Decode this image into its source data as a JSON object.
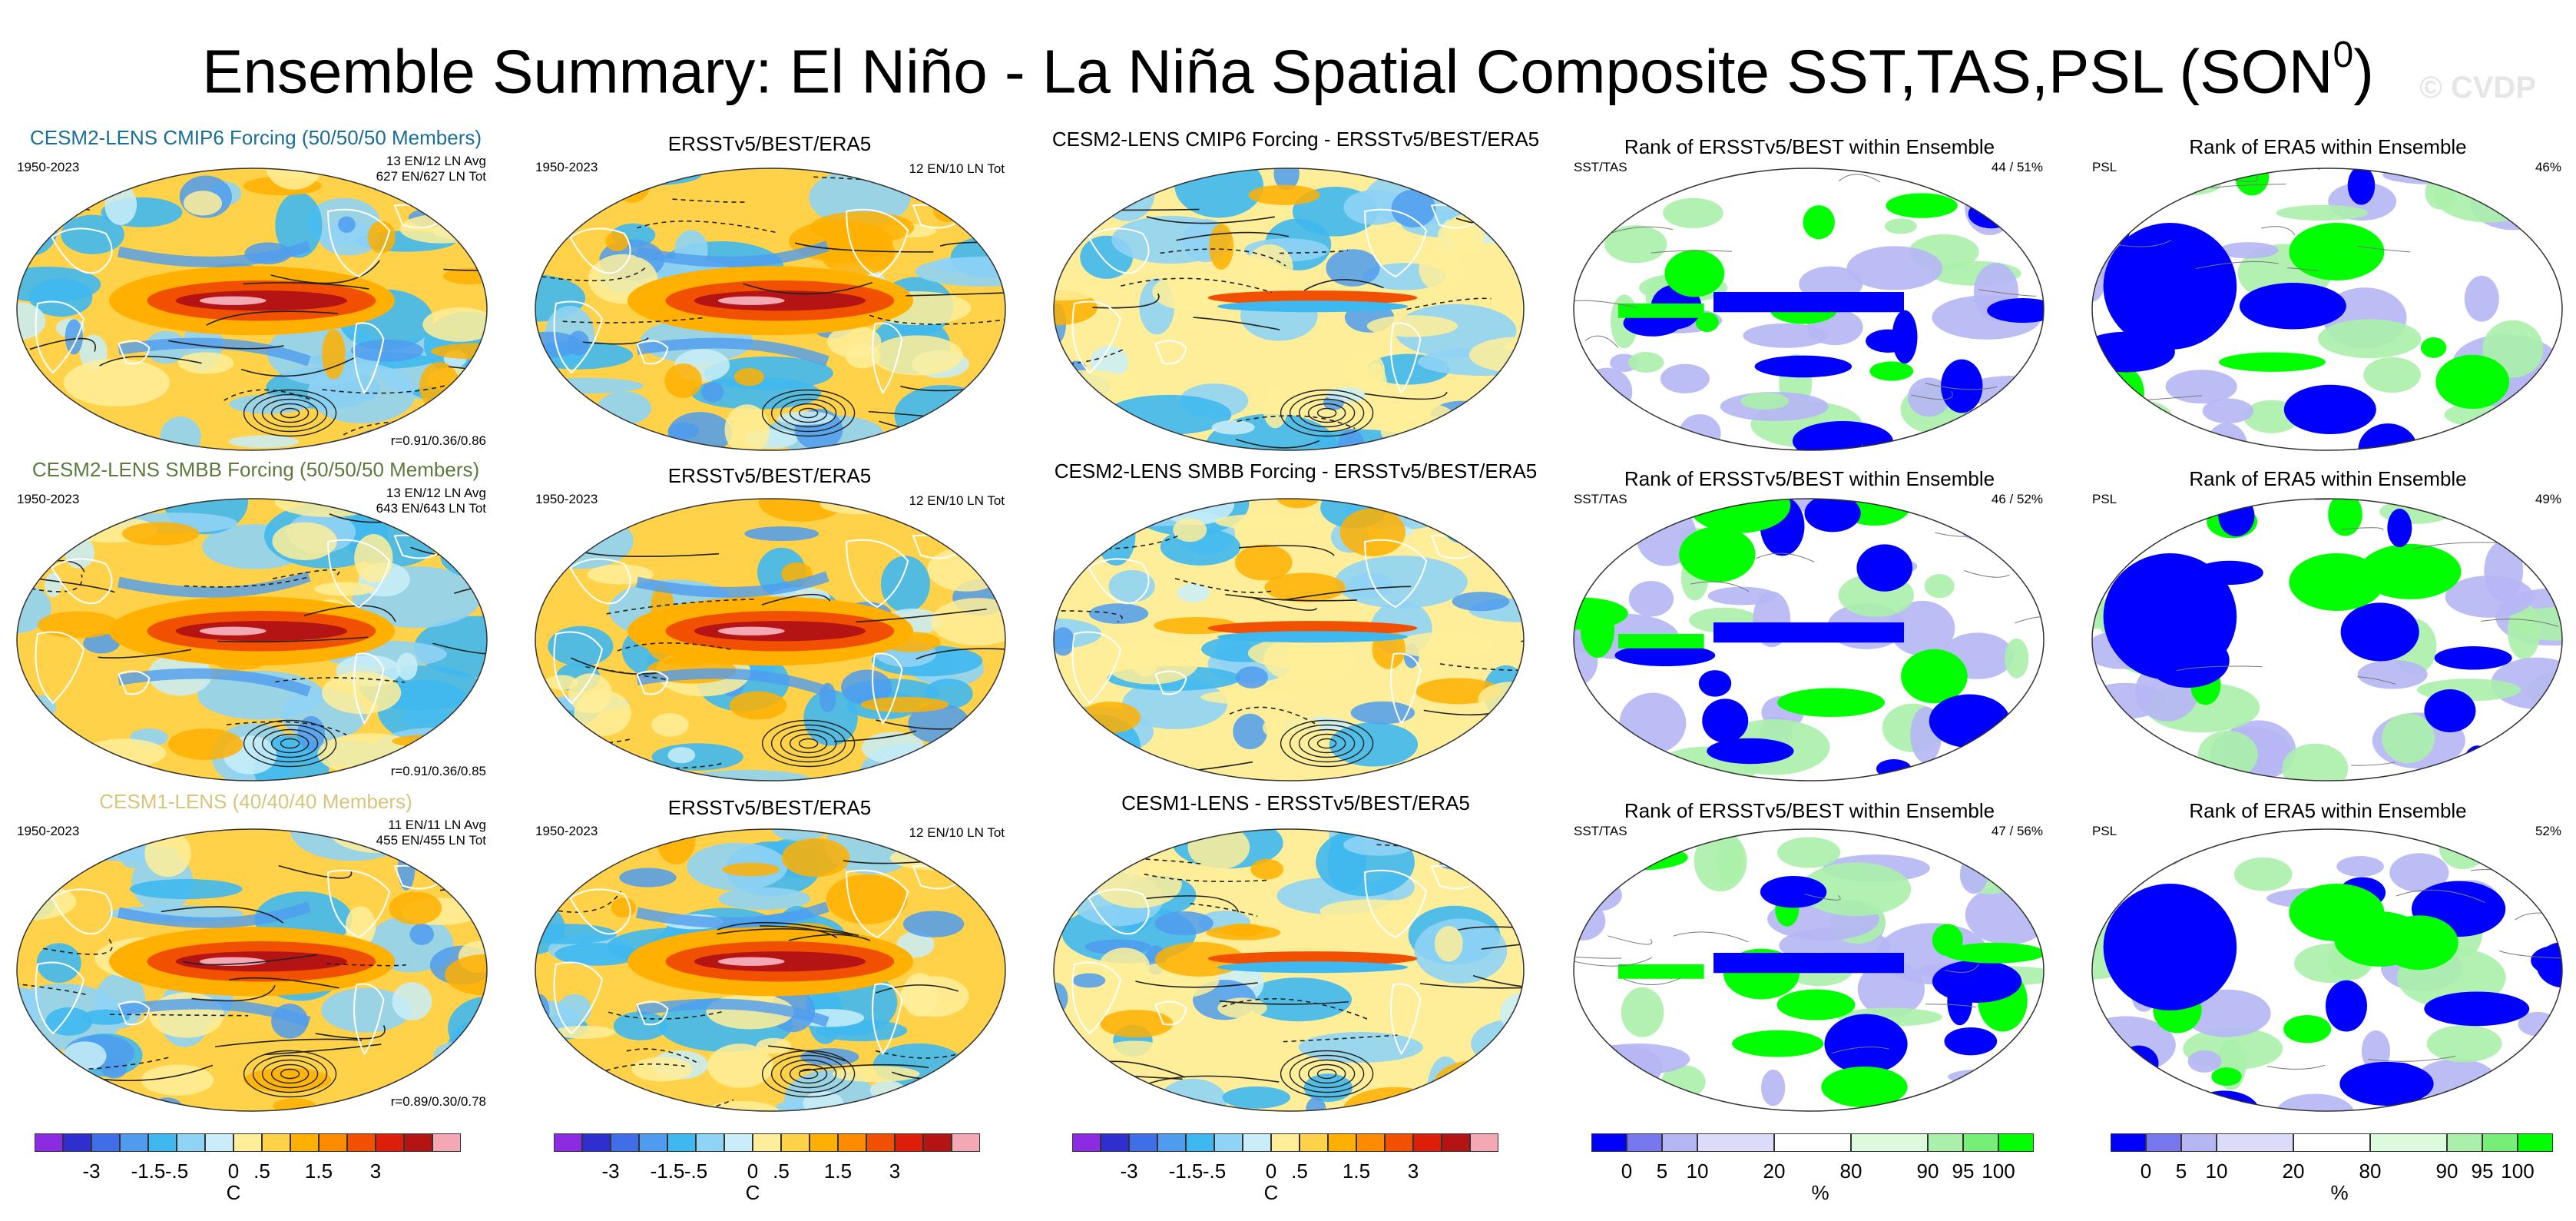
{
  "title": {
    "main": "Ensemble Summary: El Niño - La Niña Spatial Composite SST,TAS,PSL (SON",
    "sup": "0",
    "close": ")"
  },
  "watermark": "© CVDP",
  "colors": {
    "temperature_scale": [
      "#8b2be2",
      "#2f2fd0",
      "#3f6ee8",
      "#4f9cef",
      "#3fb8ef",
      "#8fd3f5",
      "#c9eef9",
      "#ffee99",
      "#ffd24a",
      "#ffb000",
      "#ff8c00",
      "#f05000",
      "#dc1e0a",
      "#b41414",
      "#f4a8b4"
    ],
    "rank_scale": [
      "#0000ff",
      "#7777ee",
      "#b6b6f5",
      "#dcdcfa",
      "#ffffff",
      "#dcfadc",
      "#aaf0aa",
      "#77ee77",
      "#00ff00"
    ],
    "teal": "#1a6e96",
    "olive": "#5c7a3c",
    "tan": "#d8c47a"
  },
  "rows": [
    {
      "model_title": "CESM2-LENS CMIP6 Forcing (50/50/50 Members)",
      "model_title_color": "#1a6e96",
      "model_period": "1950-2023",
      "model_counts": [
        "13 EN/12 LN Avg",
        "627 EN/627 LN Tot"
      ],
      "model_corr": "r=0.91/0.36/0.86",
      "obs_title": "ERSSTv5/BEST/ERA5",
      "obs_period": "1950-2023",
      "obs_counts": "12 EN/10 LN Tot",
      "diff_title": "CESM2-LENS CMIP6 Forcing - ERSSTv5/BEST/ERA5",
      "rank1_title": "Rank of ERSSTv5/BEST within Ensemble",
      "rank1_label": "SST/TAS",
      "rank1_pct": "44 /  51%",
      "rank2_title": "Rank of ERA5 within Ensemble",
      "rank2_label": "PSL",
      "rank2_pct": "46%"
    },
    {
      "model_title": "CESM2-LENS SMBB Forcing (50/50/50 Members)",
      "model_title_color": "#5c7a3c",
      "model_period": "1950-2023",
      "model_counts": [
        "13 EN/12 LN Avg",
        "643 EN/643 LN Tot"
      ],
      "model_corr": "r=0.91/0.36/0.85",
      "obs_title": "ERSSTv5/BEST/ERA5",
      "obs_period": "1950-2023",
      "obs_counts": "12 EN/10 LN Tot",
      "diff_title": "CESM2-LENS SMBB Forcing - ERSSTv5/BEST/ERA5",
      "rank1_title": "Rank of ERSSTv5/BEST within Ensemble",
      "rank1_label": "SST/TAS",
      "rank1_pct": "46 /  52%",
      "rank2_title": "Rank of ERA5 within Ensemble",
      "rank2_label": "PSL",
      "rank2_pct": "49%"
    },
    {
      "model_title": "CESM1-LENS (40/40/40 Members)",
      "model_title_color": "#d8c47a",
      "model_period": "1950-2023",
      "model_counts": [
        "11 EN/11 LN Avg",
        "455 EN/455 LN Tot"
      ],
      "model_corr": "r=0.89/0.30/0.78",
      "obs_title": "ERSSTv5/BEST/ERA5",
      "obs_period": "1950-2023",
      "obs_counts": "12 EN/10 LN Tot",
      "diff_title": "CESM1-LENS - ERSSTv5/BEST/ERA5",
      "rank1_title": "Rank of ERSSTv5/BEST within Ensemble",
      "rank1_label": "SST/TAS",
      "rank1_pct": "47 /  56%",
      "rank2_title": "Rank of ERA5 within Ensemble",
      "rank2_label": "PSL",
      "rank2_pct": "52%"
    }
  ],
  "colorbars": {
    "temperature": {
      "ticks": [
        "-3",
        "-1.5",
        "-.5",
        "0",
        ".5",
        "1.5",
        "3"
      ],
      "unit": "C"
    },
    "rank": {
      "ticks": [
        "0",
        "5",
        "10",
        "20",
        "80",
        "90",
        "95",
        "100"
      ],
      "unit": "%"
    }
  },
  "chart_data": {
    "type": "heatmap",
    "title": "Ensemble Summary: El Niño - La Niña Spatial Composite SST,TAS,PSL (SON0)",
    "projection": "Robinson (global, Pacific-centered)",
    "columns": [
      "Model ensemble-mean composite",
      "Observed composite",
      "Model minus observed",
      "Rank of ERSSTv5/BEST within Ensemble",
      "Rank of ERA5 within Ensemble"
    ],
    "temperature_levels_C": [
      -3,
      -1.5,
      -0.5,
      0,
      0.5,
      1.5,
      3
    ],
    "rank_levels_pct": [
      0,
      5,
      10,
      20,
      80,
      90,
      95,
      100
    ],
    "pattern_correlations": [
      {
        "model": "CESM2-LENS CMIP6 Forcing",
        "r_sst": 0.91,
        "r_tas": 0.36,
        "r_psl": 0.86
      },
      {
        "model": "CESM2-LENS SMBB Forcing",
        "r_sst": 0.91,
        "r_tas": 0.36,
        "r_psl": 0.85
      },
      {
        "model": "CESM1-LENS",
        "r_sst": 0.89,
        "r_tas": 0.3,
        "r_psl": 0.78
      }
    ],
    "members": [
      {
        "model": "CESM2-LENS CMIP6 Forcing",
        "n": 50
      },
      {
        "model": "CESM2-LENS SMBB Forcing",
        "n": 50
      },
      {
        "model": "CESM1-LENS",
        "n": 40
      }
    ],
    "rank_pct_sst_tas": [
      {
        "a": 44,
        "b": 51
      },
      {
        "a": 46,
        "b": 52
      },
      {
        "a": 47,
        "b": 56
      }
    ],
    "rank_pct_psl": [
      46,
      49,
      52
    ]
  }
}
